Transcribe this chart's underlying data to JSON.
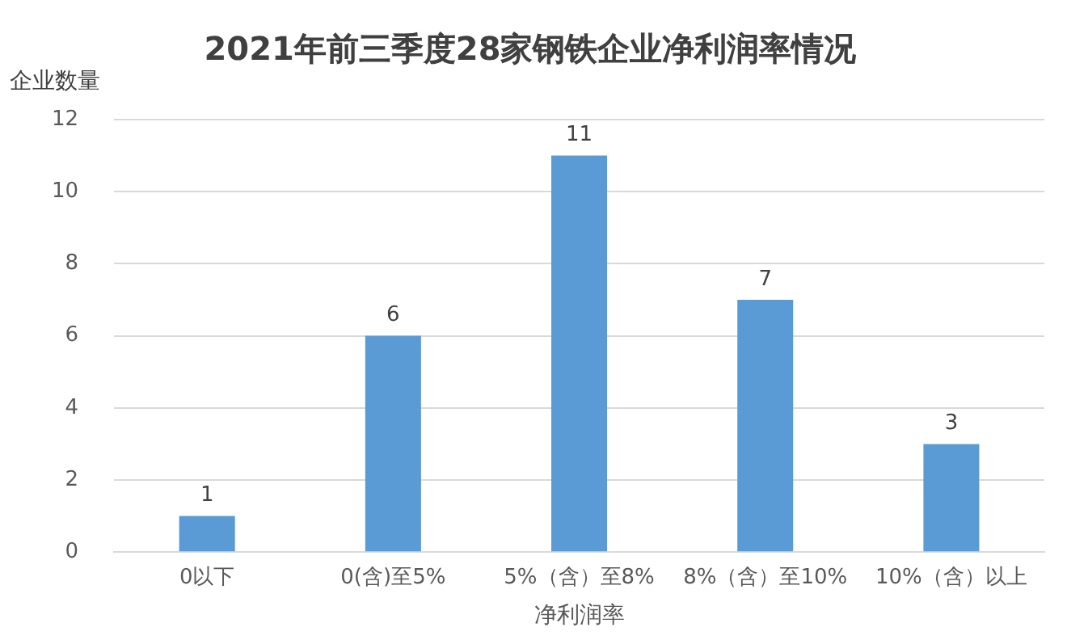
{
  "chart_data": {
    "type": "bar",
    "title": "2021年前三季度28家钢铁企业净利润率情况",
    "xlabel": "净利润率",
    "ylabel": "企业数量",
    "categories": [
      "0以下",
      "0(含)至5%",
      "5%（含）至8%",
      "8%（含）至10%",
      "10%（含）以上"
    ],
    "values": [
      1,
      6,
      11,
      7,
      3
    ],
    "color": "#5b9bd5",
    "ylim": [
      0,
      12
    ],
    "yticks": [
      0,
      2,
      4,
      6,
      8,
      10,
      12
    ],
    "grid": "y",
    "data_labels": true,
    "legend": false
  }
}
